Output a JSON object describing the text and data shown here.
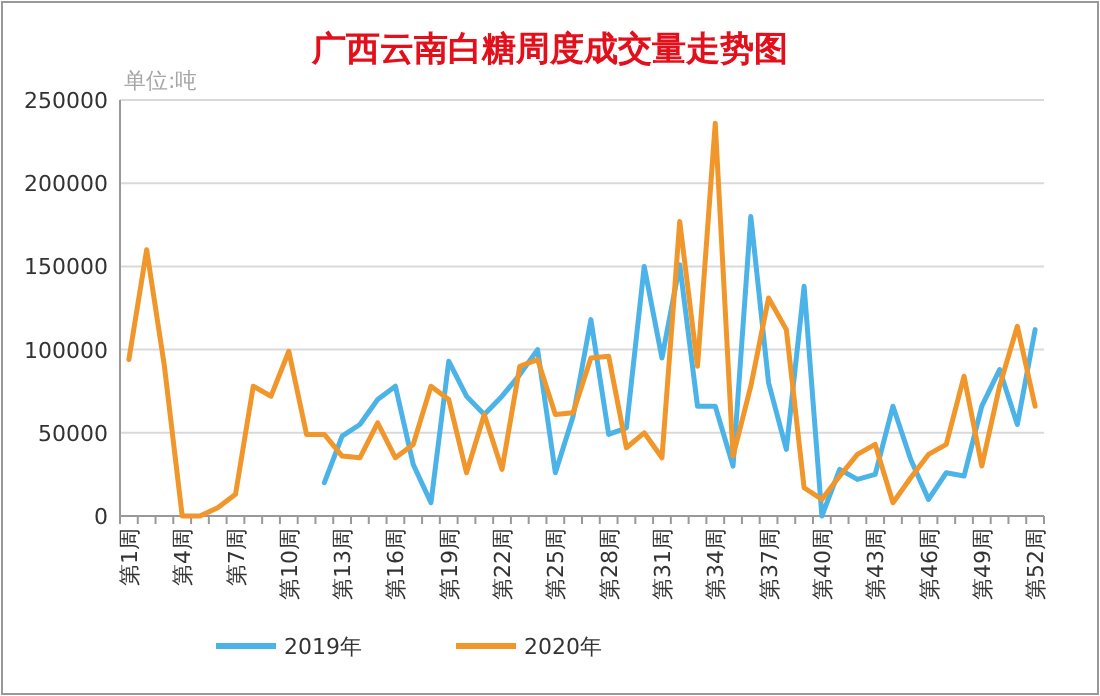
{
  "chart_data": {
    "type": "line",
    "title": "广西云南白糖周度成交量走势图",
    "annotations": [
      "单位:吨"
    ],
    "categories": [
      "第1周",
      null,
      null,
      "第4周",
      null,
      null,
      "第7周",
      null,
      null,
      "第10周",
      null,
      null,
      "第13周",
      null,
      null,
      "第16周",
      null,
      null,
      "第19周",
      null,
      null,
      "第22周",
      null,
      null,
      "第25周",
      null,
      null,
      "第28周",
      null,
      null,
      "第31周",
      null,
      null,
      "第34周",
      null,
      null,
      "第37周",
      null,
      null,
      "第40周",
      null,
      null,
      "第43周",
      null,
      null,
      "第46周",
      null,
      null,
      "第49周",
      null,
      null,
      "第52周"
    ],
    "series": [
      {
        "name": "2019年",
        "color": "#4bb3e8",
        "values": [
          null,
          null,
          null,
          null,
          null,
          null,
          null,
          null,
          null,
          null,
          null,
          20000,
          48000,
          55000,
          70000,
          78000,
          31000,
          8000,
          93000,
          72000,
          61000,
          72000,
          85000,
          100000,
          26000,
          60000,
          118000,
          49000,
          53000,
          150000,
          95000,
          151000,
          66000,
          66000,
          30000,
          180000,
          80000,
          40000,
          138000,
          0,
          28000,
          22000,
          25000,
          66000,
          34000,
          10000,
          26000,
          24000,
          66000,
          88000,
          55000,
          112000
        ]
      },
      {
        "name": "2020年",
        "color": "#f0962a",
        "values": [
          94000,
          160000,
          90000,
          0,
          0,
          5000,
          13000,
          78000,
          72000,
          99000,
          49000,
          49000,
          36000,
          35000,
          56000,
          35000,
          43000,
          78000,
          70000,
          26000,
          61000,
          28000,
          90000,
          94000,
          61000,
          62000,
          95000,
          96000,
          41000,
          50000,
          35000,
          177000,
          90000,
          236000,
          36000,
          78000,
          131000,
          112000,
          17000,
          10000,
          24000,
          37000,
          43000,
          8000,
          23000,
          37000,
          43000,
          84000,
          30000,
          78000,
          114000,
          66000
        ]
      }
    ],
    "ylim": [
      0,
      250000
    ],
    "yticks": [
      0,
      50000,
      100000,
      150000,
      200000,
      250000
    ],
    "grid": "y",
    "legend": "bottom"
  }
}
